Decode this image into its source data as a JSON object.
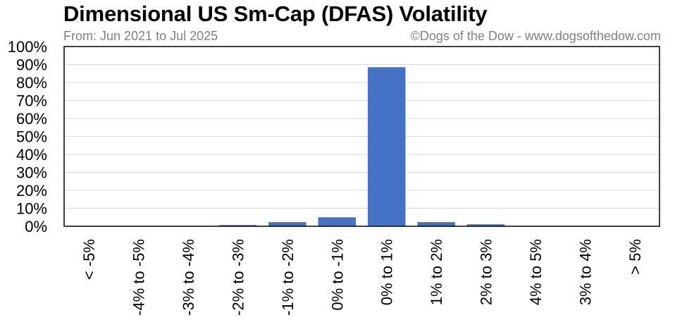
{
  "chart_data": {
    "type": "bar",
    "title": "Dimensional US Sm-Cap (DFAS) Volatility",
    "subtitle": "From: Jun 2021 to Jul 2025",
    "credit": "©Dogs of the Dow - www.dogsofthedow.com",
    "categories": [
      "< -5%",
      "-4% to -5%",
      "-3% to -4%",
      "-2% to -3%",
      "-1% to -2%",
      "0% to -1%",
      "0% to 1%",
      "1% to 2%",
      "2% to 3%",
      "4% to 5%",
      "3% to 4%",
      "> 5%"
    ],
    "values": [
      0,
      0,
      0,
      0.7,
      2.3,
      5.0,
      88.5,
      2.3,
      1.1,
      0,
      0,
      0
    ],
    "ylim": [
      0,
      100
    ],
    "yticks": [
      "0%",
      "10%",
      "20%",
      "30%",
      "40%",
      "50%",
      "60%",
      "70%",
      "80%",
      "90%",
      "100%"
    ],
    "grid": true,
    "colors": {
      "bar": "#4472C4",
      "grid": "#d9d9d9",
      "frame": "#000000"
    }
  }
}
